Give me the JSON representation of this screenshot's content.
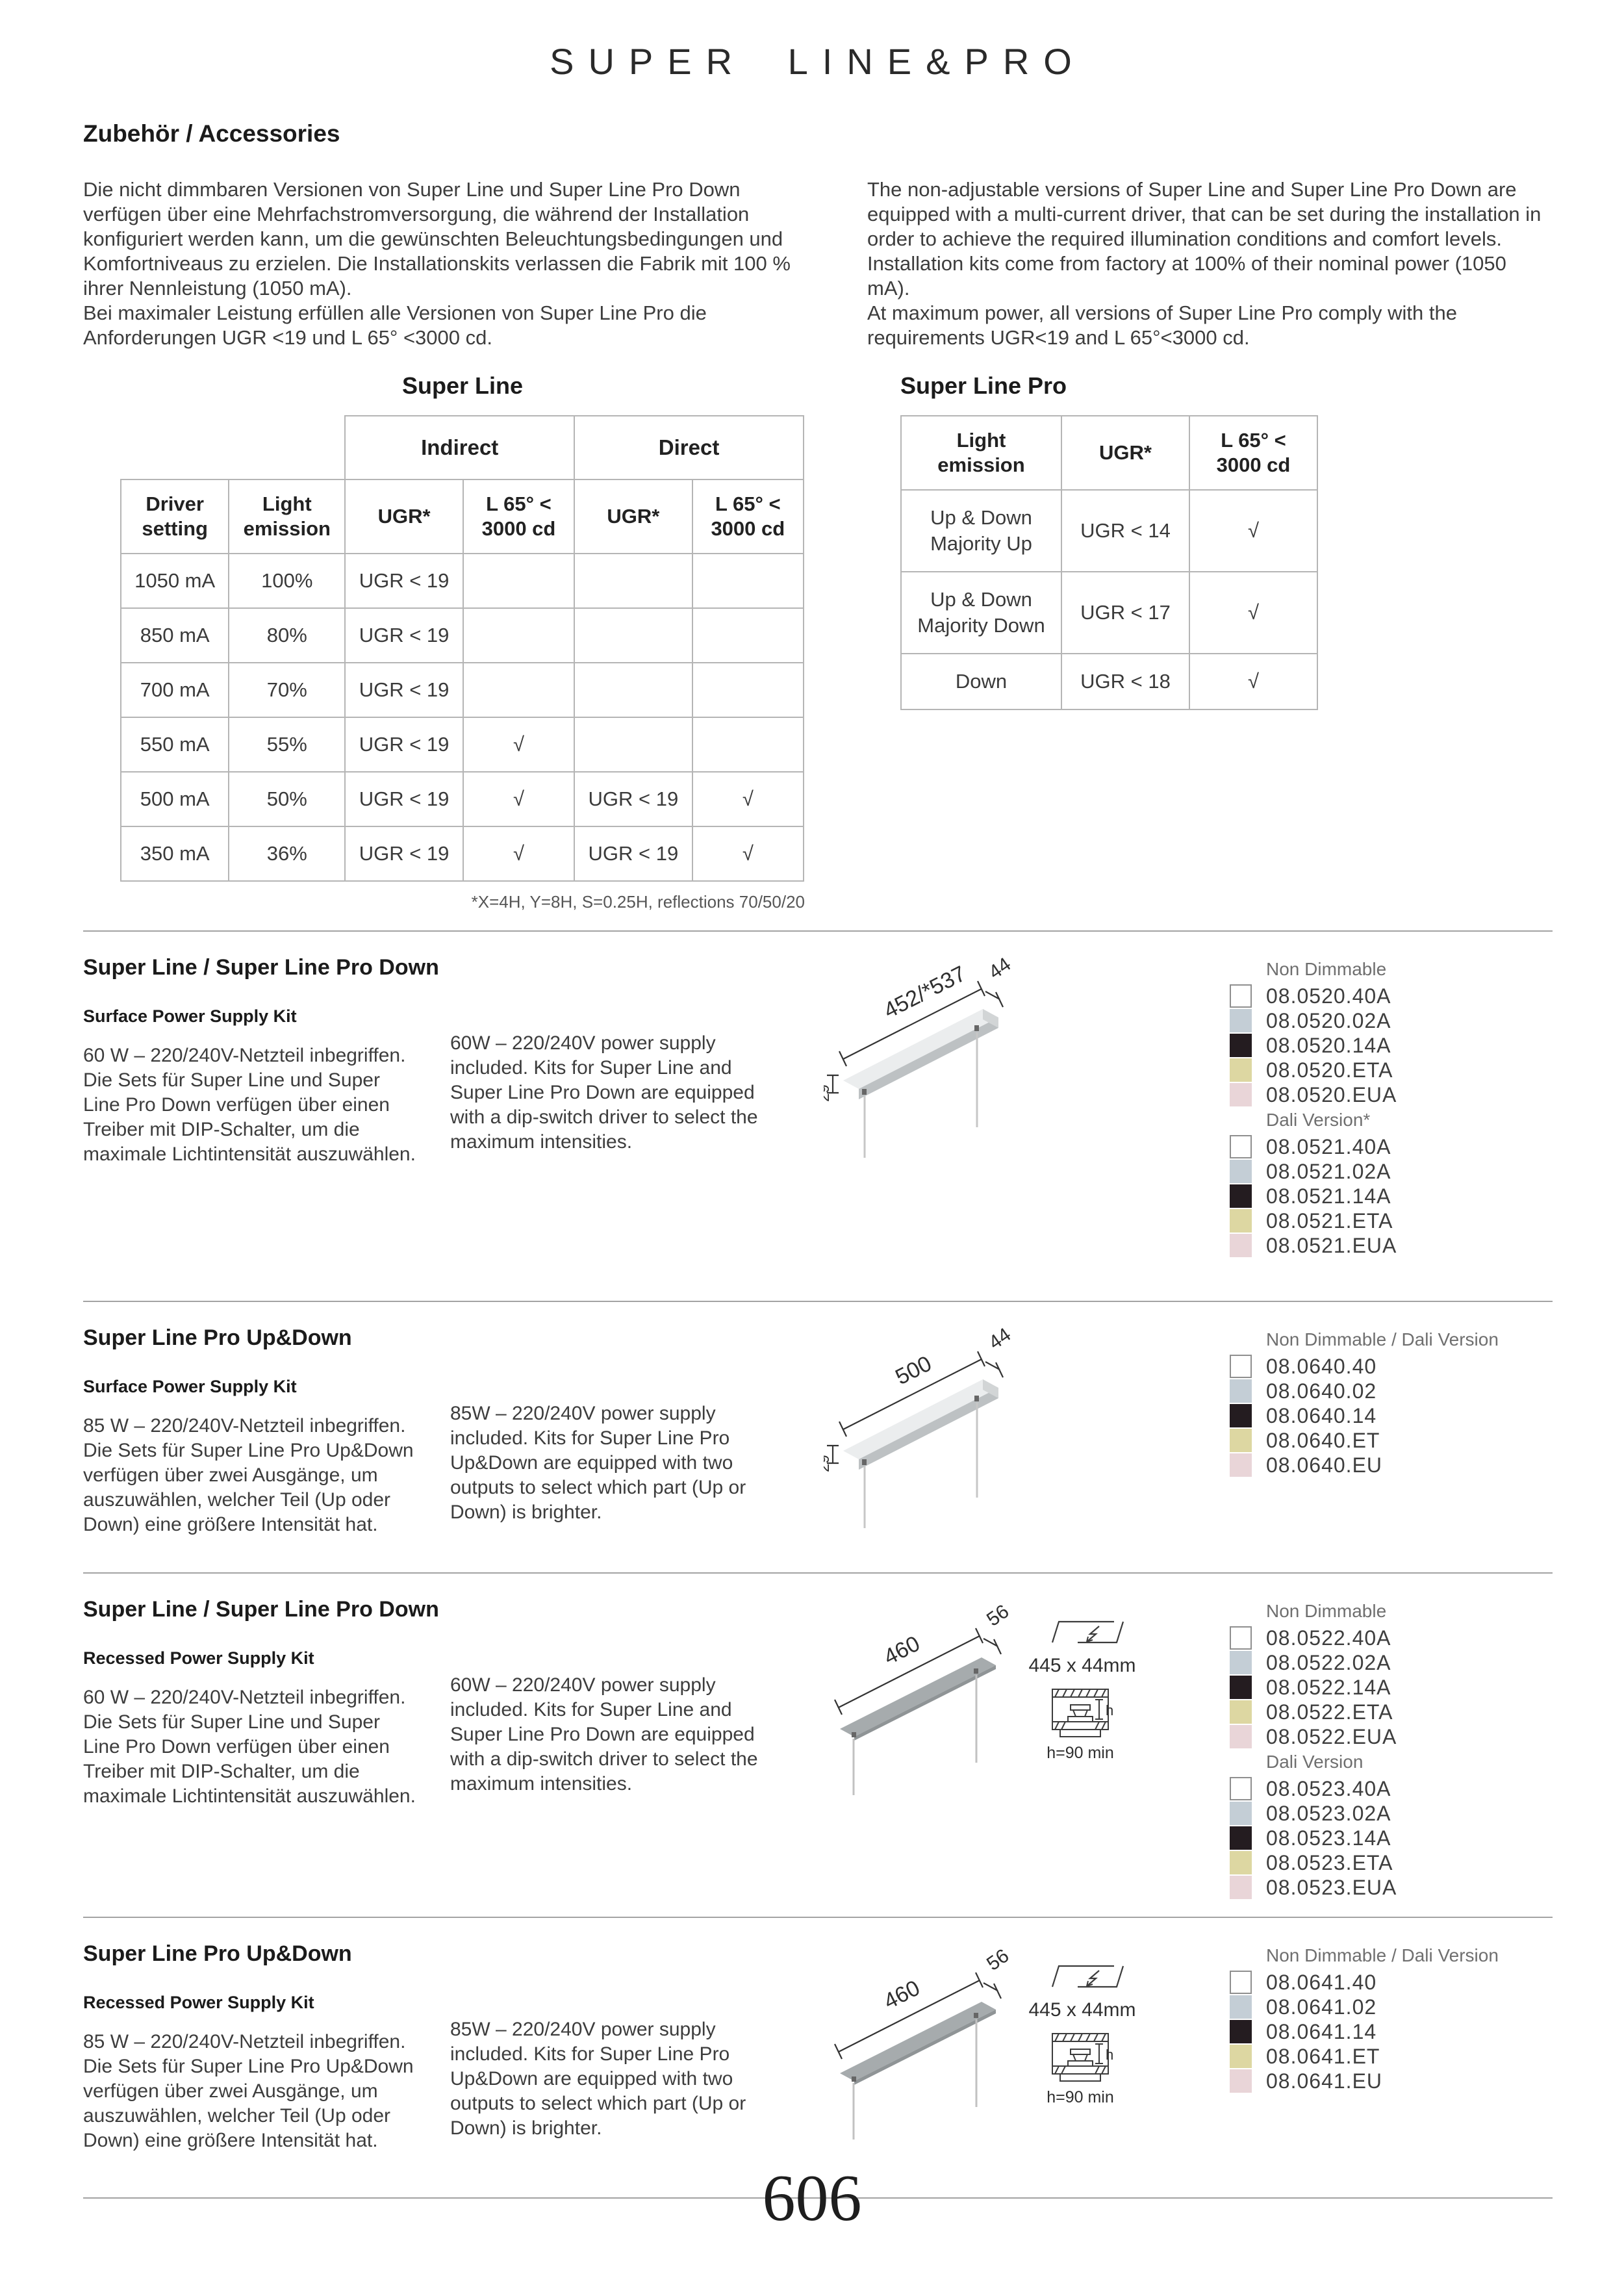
{
  "header": {
    "title": "SUPER LINE&PRO",
    "subtitle": "Zubehör / Accessories",
    "page_number": "606"
  },
  "intro": {
    "de1": "Die nicht dimmbaren Versionen von Super Line und Super Line Pro Down verfügen über eine Mehrfachstromversorgung, die während der Installation konfiguriert werden kann, um die gewünschten Beleuchtungsbedingungen und Komfortniveaus zu erzielen. Die Installationskits verlassen die Fabrik mit 100 % ihrer Nennleistung (1050 mA).",
    "de2": "Bei maximaler Leistung erfüllen alle Versionen von Super Line Pro die Anforderungen UGR <19 und L 65° <3000 cd.",
    "en1": "The non-adjustable versions of Super Line and Super Line Pro Down are equipped with a multi-current driver, that can be set during the installation in order to achieve the required illumination conditions and comfort levels. Installation kits come from factory at 100% of their nominal power (1050 mA).",
    "en2": "At maximum power, all versions of Super Line Pro comply with the requirements UGR<19 and L 65°<3000 cd."
  },
  "super_line_table": {
    "title": "Super Line",
    "group_headers": [
      "Indirect",
      "Direct"
    ],
    "col_headers": [
      "Driver\nsetting",
      "Light\nemission",
      "UGR*",
      "L 65° <\n3000 cd",
      "UGR*",
      "L 65° <\n3000 cd"
    ],
    "rows": [
      [
        "1050 mA",
        "100%",
        "UGR < 19",
        "",
        "",
        ""
      ],
      [
        "850 mA",
        "80%",
        "UGR < 19",
        "",
        "",
        ""
      ],
      [
        "700 mA",
        "70%",
        "UGR < 19",
        "",
        "",
        ""
      ],
      [
        "550 mA",
        "55%",
        "UGR < 19",
        "√",
        "",
        ""
      ],
      [
        "500 mA",
        "50%",
        "UGR < 19",
        "√",
        "UGR < 19",
        "√"
      ],
      [
        "350 mA",
        "36%",
        "UGR < 19",
        "√",
        "UGR < 19",
        "√"
      ]
    ],
    "footnote": "*X=4H, Y=8H, S=0.25H, reflections 70/50/20"
  },
  "super_line_pro_table": {
    "title": "Super Line Pro",
    "col_headers": [
      "Light\nemission",
      "UGR*",
      "L 65° <\n3000 cd"
    ],
    "rows": [
      [
        "Up & Down\nMajority Up",
        "UGR < 14",
        "√"
      ],
      [
        "Up & Down\nMajority Down",
        "UGR < 17",
        "√"
      ],
      [
        "Down",
        "UGR < 18",
        "√"
      ]
    ]
  },
  "finishes": {
    "white": "#ffffff",
    "grey": "#c4ced6",
    "black": "#241c20",
    "gold": "#ddd7a2",
    "rose": "#e9d5d8"
  },
  "sections": [
    {
      "title": "Super Line / Super Line Pro Down",
      "kit": "Surface Power Supply Kit",
      "de": "60 W – 220/240V-Netzteil inbegriffen. Die Sets für Super Line und Super Line Pro Down verfügen über einen Treiber mit DIP-Schalter, um die maximale Lichtintensität auszuwählen.",
      "en": "60W – 220/240V power supply included. Kits for Super Line and Super Line Pro Down are equipped with a dip-switch driver to select the maximum intensities.",
      "diagram": {
        "length": "452/*537",
        "width": "44",
        "height": "29"
      },
      "code_groups": [
        {
          "label": "Non Dimmable",
          "codes": [
            {
              "code": "08.0520.40A",
              "finish": "white"
            },
            {
              "code": "08.0520.02A",
              "finish": "grey"
            },
            {
              "code": "08.0520.14A",
              "finish": "black"
            },
            {
              "code": "08.0520.ETA",
              "finish": "gold"
            },
            {
              "code": "08.0520.EUA",
              "finish": "rose"
            }
          ]
        },
        {
          "label": "Dali Version*",
          "codes": [
            {
              "code": "08.0521.40A",
              "finish": "white"
            },
            {
              "code": "08.0521.02A",
              "finish": "grey"
            },
            {
              "code": "08.0521.14A",
              "finish": "black"
            },
            {
              "code": "08.0521.ETA",
              "finish": "gold"
            },
            {
              "code": "08.0521.EUA",
              "finish": "rose"
            }
          ]
        }
      ]
    },
    {
      "title": "Super Line Pro Up&Down",
      "kit": "Surface Power Supply Kit",
      "de": "85 W – 220/240V-Netzteil inbegriffen. Die Sets für Super Line Pro Up&Down verfügen über zwei Ausgänge, um auszuwählen, welcher Teil (Up oder Down) eine größere Intensität hat.",
      "en": "85W – 220/240V power supply included. Kits for Super Line Pro Up&Down are equipped with two outputs to select which part (Up or Down) is brighter.",
      "diagram": {
        "length": "500",
        "width": "44",
        "height": "29"
      },
      "code_groups": [
        {
          "label": "Non Dimmable / Dali Version",
          "codes": [
            {
              "code": "08.0640.40",
              "finish": "white"
            },
            {
              "code": "08.0640.02",
              "finish": "grey"
            },
            {
              "code": "08.0640.14",
              "finish": "black"
            },
            {
              "code": "08.0640.ET",
              "finish": "gold"
            },
            {
              "code": "08.0640.EU",
              "finish": "rose"
            }
          ]
        }
      ]
    },
    {
      "title": "Super Line / Super Line Pro Down",
      "kit": "Recessed Power Supply Kit",
      "de": "60 W – 220/240V-Netzteil inbegriffen. Die Sets für Super Line und Super Line Pro Down verfügen über einen Treiber mit DIP-Schalter, um die maximale Lichtintensität auszuwählen.",
      "en": "60W – 220/240V power supply included. Kits for Super Line and Super Line Pro Down are equipped with a dip-switch driver to select the maximum intensities.",
      "diagram": {
        "length": "460",
        "width": "56",
        "cutout": "445 x 44mm",
        "depth_label": "h",
        "depth": "h=90 min"
      },
      "code_groups": [
        {
          "label": "Non Dimmable",
          "codes": [
            {
              "code": "08.0522.40A",
              "finish": "white"
            },
            {
              "code": "08.0522.02A",
              "finish": "grey"
            },
            {
              "code": "08.0522.14A",
              "finish": "black"
            },
            {
              "code": "08.0522.ETA",
              "finish": "gold"
            },
            {
              "code": "08.0522.EUA",
              "finish": "rose"
            }
          ]
        },
        {
          "label": "Dali Version",
          "codes": [
            {
              "code": "08.0523.40A",
              "finish": "white"
            },
            {
              "code": "08.0523.02A",
              "finish": "grey"
            },
            {
              "code": "08.0523.14A",
              "finish": "black"
            },
            {
              "code": "08.0523.ETA",
              "finish": "gold"
            },
            {
              "code": "08.0523.EUA",
              "finish": "rose"
            }
          ]
        }
      ]
    },
    {
      "title": "Super Line Pro Up&Down",
      "kit": "Recessed Power Supply Kit",
      "de": "85 W – 220/240V-Netzteil inbegriffen. Die Sets für Super Line Pro Up&Down verfügen über zwei Ausgänge, um auszuwählen, welcher Teil (Up oder Down) eine größere Intensität hat.",
      "en": "85W – 220/240V power supply included. Kits for Super Line Pro Up&Down are equipped with two outputs to select which part (Up or Down) is brighter.",
      "diagram": {
        "length": "460",
        "width": "56",
        "cutout": "445 x 44mm",
        "depth_label": "h",
        "depth": "h=90 min"
      },
      "code_groups": [
        {
          "label": "Non Dimmable / Dali Version",
          "codes": [
            {
              "code": "08.0641.40",
              "finish": "white"
            },
            {
              "code": "08.0641.02",
              "finish": "grey"
            },
            {
              "code": "08.0641.14",
              "finish": "black"
            },
            {
              "code": "08.0641.ET",
              "finish": "gold"
            },
            {
              "code": "08.0641.EU",
              "finish": "rose"
            }
          ]
        }
      ]
    }
  ]
}
